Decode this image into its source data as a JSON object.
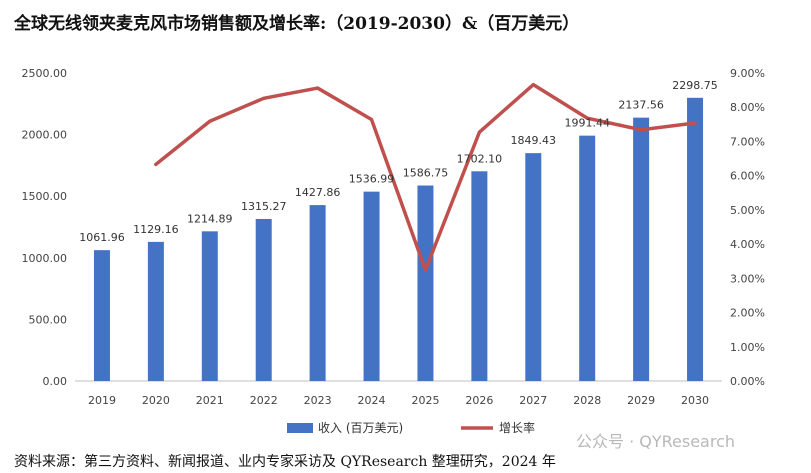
{
  "title": "全球无线领夹麦克风市场销售额及增长率:（2019-2030）&（百万美元）",
  "source": "资料来源：第三方资料、新闻报道、业内专家采访及 QYResearch 整理研究，2024 年",
  "watermark": "公众号 · QYResearch",
  "colors": {
    "bar": "#4472C4",
    "line": "#C0504D"
  },
  "chart_data": {
    "type": "bar",
    "title": "全球无线领夹麦克风市场销售额及增长率:（2019-2030）&（百万美元）",
    "categories": [
      "2019",
      "2020",
      "2021",
      "2022",
      "2023",
      "2024",
      "2025",
      "2026",
      "2027",
      "2028",
      "2029",
      "2030"
    ],
    "series": [
      {
        "name": "收入 (百万美元)",
        "type": "bar",
        "axis": "left",
        "values": [
          1061.96,
          1129.16,
          1214.89,
          1315.27,
          1427.86,
          1536.99,
          1586.75,
          1702.1,
          1849.43,
          1991.44,
          2137.56,
          2298.75
        ],
        "labels": [
          "1061.96",
          "1129.16",
          "1214.89",
          "1315.27",
          "1427.86",
          "1536.99",
          "1586.75",
          "1702.10",
          "1849.43",
          "1991.44",
          "2137.56",
          "2298.75"
        ]
      },
      {
        "name": "增长率",
        "type": "line",
        "axis": "right",
        "values": [
          null,
          6.33,
          7.59,
          8.26,
          8.56,
          7.64,
          3.24,
          7.27,
          8.66,
          7.68,
          7.34,
          7.54
        ]
      }
    ],
    "y_left": {
      "ylim": [
        0,
        2500
      ],
      "ticks": [
        "0.00",
        "500.00",
        "1000.00",
        "1500.00",
        "2000.00",
        "2500.00"
      ]
    },
    "y_right": {
      "ylim": [
        0,
        9
      ],
      "ticks": [
        "0.00%",
        "1.00%",
        "2.00%",
        "3.00%",
        "4.00%",
        "5.00%",
        "6.00%",
        "7.00%",
        "8.00%",
        "9.00%"
      ]
    },
    "grid": false,
    "legend": "bottom"
  }
}
